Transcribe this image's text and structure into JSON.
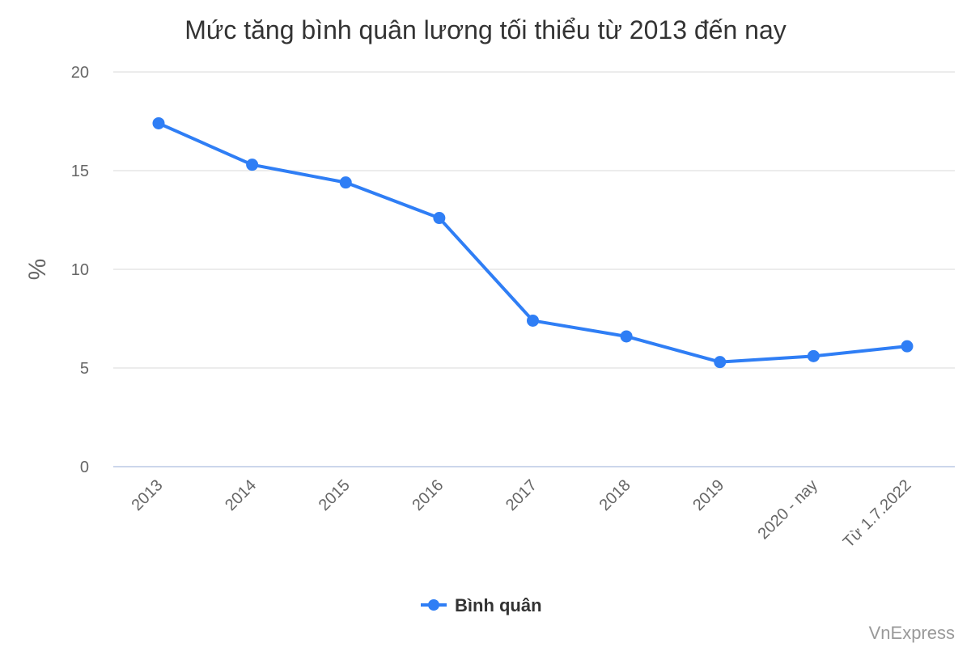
{
  "chart_data": {
    "type": "line",
    "title": "Mức tăng bình quân lương tối thiểu từ 2013 đến nay",
    "xlabel": "",
    "ylabel": "%",
    "categories": [
      "2013",
      "2014",
      "2015",
      "2016",
      "2017",
      "2018",
      "2019",
      "2020 - nay",
      "Từ 1.7.2022"
    ],
    "series": [
      {
        "name": "Bình quân",
        "values": [
          17.4,
          15.3,
          14.4,
          12.6,
          7.4,
          6.6,
          5.3,
          5.6,
          6.1
        ]
      }
    ],
    "ylim": [
      0,
      20
    ],
    "yticks": [
      0,
      5,
      10,
      15,
      20
    ],
    "grid": true,
    "legend_position": "bottom-center",
    "colors": {
      "series": "#2f7ef5",
      "grid": "#e6e6e6",
      "axis": "#ccd6eb"
    },
    "credit": "VnExpress"
  }
}
